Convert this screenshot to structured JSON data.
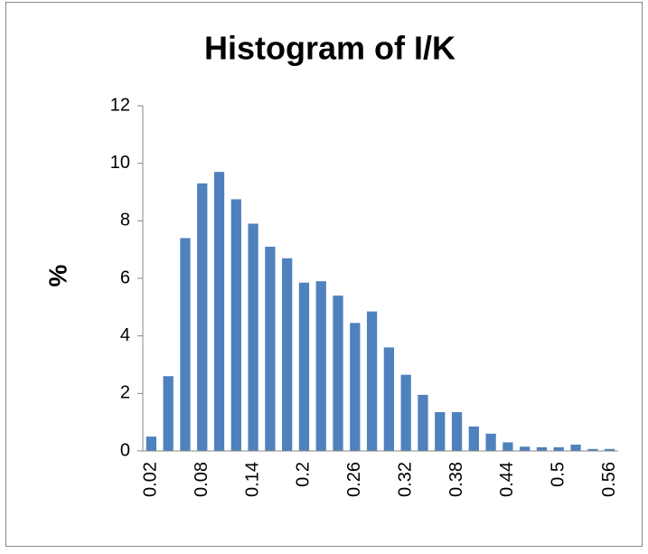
{
  "chart_data": {
    "type": "bar",
    "title": "Histogram of I/K",
    "y_label": "%",
    "categories": [
      "0.02",
      null,
      null,
      "0.08",
      null,
      null,
      "0.14",
      null,
      null,
      "0.2",
      null,
      null,
      "0.26",
      null,
      null,
      "0.32",
      null,
      null,
      "0.38",
      null,
      null,
      "0.44",
      null,
      null,
      "0.5",
      null,
      null,
      "0.56"
    ],
    "values": [
      0.5,
      2.6,
      7.4,
      9.3,
      9.7,
      8.75,
      7.9,
      7.1,
      6.7,
      5.85,
      5.9,
      5.4,
      4.45,
      4.85,
      3.6,
      2.65,
      1.95,
      1.35,
      1.35,
      0.85,
      0.6,
      0.3,
      0.15,
      0.13,
      0.13,
      0.22,
      0.07,
      0.07
    ],
    "color": "#4f81bd",
    "ylim": [
      0,
      12
    ],
    "yticks": [
      0,
      2,
      4,
      6,
      8,
      10,
      12
    ],
    "grid": false
  }
}
